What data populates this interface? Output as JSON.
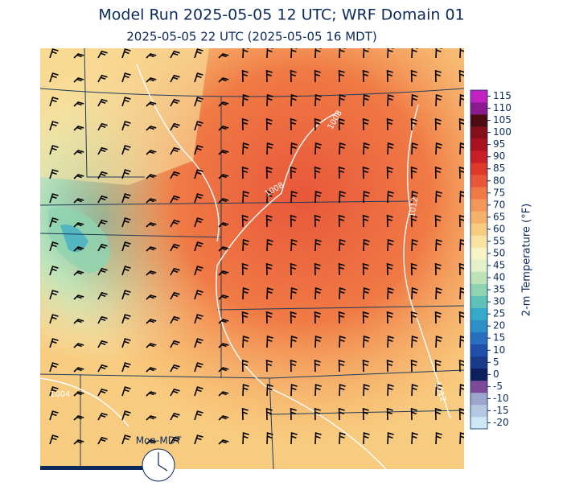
{
  "header": {
    "title": "Model Run 2025-05-05 12 UTC; WRF Domain 01",
    "subtitle": "2025-05-05 22 UTC  (2025-05-05 16 MDT)"
  },
  "colorbar": {
    "label": "2-m Temperature (°F)",
    "ticks": [
      -20,
      -15,
      -10,
      -5,
      0,
      5,
      10,
      15,
      20,
      25,
      30,
      35,
      40,
      45,
      50,
      55,
      60,
      65,
      70,
      75,
      80,
      85,
      90,
      95,
      100,
      105,
      110,
      115
    ],
    "colors": [
      "#cfe7f7",
      "#b4c8e2",
      "#9da6cc",
      "#7d4a9a",
      "#0d1f5c",
      "#1a3a8a",
      "#1f4fa8",
      "#2a6fbf",
      "#2f8fc9",
      "#37a9c9",
      "#5fc2b8",
      "#8fd3b0",
      "#bfe3b9",
      "#e3f0c8",
      "#f6f3c4",
      "#f9e3a0",
      "#f8cc80",
      "#f6b26a",
      "#f4985a",
      "#f07a45",
      "#e8573a",
      "#dd3a2c",
      "#c81e25",
      "#a8131f",
      "#86101a",
      "#4d0b12",
      "#8b1a8f",
      "#c023c0"
    ]
  },
  "contour_labels": [
    "1008",
    "1008",
    "1012",
    "1012",
    "1004"
  ],
  "clock": {
    "label": "Mon-MDT"
  }
}
